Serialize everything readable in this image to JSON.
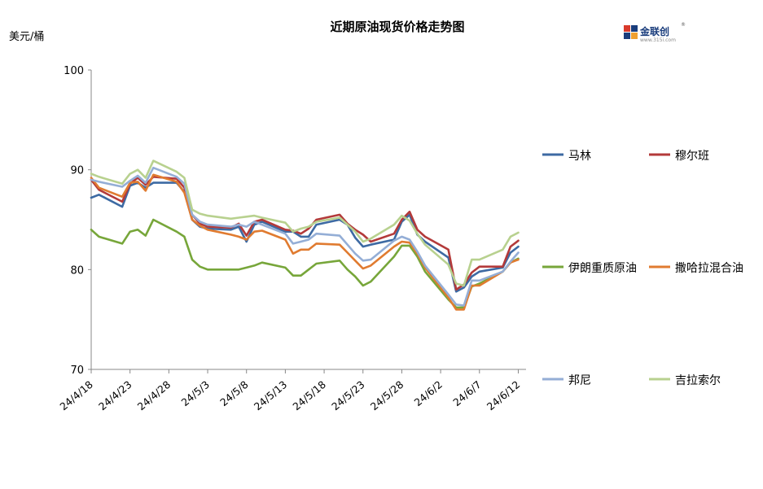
{
  "chart_data": {
    "type": "line",
    "title": "近期原油现货价格走势图",
    "unit_label": "美元/桶",
    "ylim": [
      70,
      100
    ],
    "y_ticks": [
      "70",
      "80",
      "90",
      "100"
    ],
    "x_ticks": [
      "24/4/18",
      "24/4/23",
      "24/4/28",
      "24/5/3",
      "24/5/8",
      "24/5/13",
      "24/5/18",
      "24/5/23",
      "24/5/28",
      "24/6/2",
      "24/6/7",
      "24/6/12"
    ],
    "x_start": "2024-04-18",
    "x_end": "2024-06-13",
    "grid": false,
    "legend_position": "right",
    "series": [
      {
        "name": "马林",
        "color": "#3d6aa3",
        "points": [
          [
            "2024-04-18",
            87.2
          ],
          [
            "2024-04-19",
            87.5
          ],
          [
            "2024-04-22",
            86.3
          ],
          [
            "2024-04-23",
            88.4
          ],
          [
            "2024-04-24",
            88.7
          ],
          [
            "2024-04-25",
            88.2
          ],
          [
            "2024-04-26",
            88.7
          ],
          [
            "2024-04-29",
            88.7
          ],
          [
            "2024-04-30",
            87.8
          ],
          [
            "2024-05-01",
            85.0
          ],
          [
            "2024-05-02",
            84.3
          ],
          [
            "2024-05-03",
            84.1
          ],
          [
            "2024-05-06",
            84.0
          ],
          [
            "2024-05-07",
            84.3
          ],
          [
            "2024-05-08",
            82.8
          ],
          [
            "2024-05-09",
            84.5
          ],
          [
            "2024-05-10",
            84.8
          ],
          [
            "2024-05-13",
            83.8
          ],
          [
            "2024-05-14",
            83.8
          ],
          [
            "2024-05-15",
            83.3
          ],
          [
            "2024-05-16",
            83.3
          ],
          [
            "2024-05-17",
            84.5
          ],
          [
            "2024-05-20",
            85.0
          ],
          [
            "2024-05-21",
            84.5
          ],
          [
            "2024-05-22",
            83.2
          ],
          [
            "2024-05-23",
            82.3
          ],
          [
            "2024-05-24",
            82.5
          ],
          [
            "2024-05-27",
            83.0
          ],
          [
            "2024-05-28",
            84.8
          ],
          [
            "2024-05-29",
            85.5
          ],
          [
            "2024-05-30",
            83.5
          ],
          [
            "2024-05-31",
            82.8
          ],
          [
            "2024-06-03",
            81.2
          ],
          [
            "2024-06-04",
            77.8
          ],
          [
            "2024-06-05",
            78.2
          ],
          [
            "2024-06-06",
            79.3
          ],
          [
            "2024-06-07",
            79.8
          ],
          [
            "2024-06-10",
            80.2
          ],
          [
            "2024-06-11",
            81.7
          ],
          [
            "2024-06-12",
            82.3
          ]
        ]
      },
      {
        "name": "穆尔班",
        "color": "#b33a3a",
        "points": [
          [
            "2024-04-18",
            89.0
          ],
          [
            "2024-04-19",
            88.0
          ],
          [
            "2024-04-22",
            86.8
          ],
          [
            "2024-04-23",
            88.6
          ],
          [
            "2024-04-24",
            89.2
          ],
          [
            "2024-04-25",
            88.5
          ],
          [
            "2024-04-26",
            89.3
          ],
          [
            "2024-04-29",
            89.1
          ],
          [
            "2024-04-30",
            88.2
          ],
          [
            "2024-05-01",
            85.5
          ],
          [
            "2024-05-02",
            84.6
          ],
          [
            "2024-05-03",
            84.3
          ],
          [
            "2024-05-06",
            84.2
          ],
          [
            "2024-05-07",
            84.6
          ],
          [
            "2024-05-08",
            83.4
          ],
          [
            "2024-05-09",
            84.8
          ],
          [
            "2024-05-10",
            85.0
          ],
          [
            "2024-05-13",
            84.0
          ],
          [
            "2024-05-14",
            83.9
          ],
          [
            "2024-05-15",
            83.6
          ],
          [
            "2024-05-16",
            84.1
          ],
          [
            "2024-05-17",
            85.0
          ],
          [
            "2024-05-20",
            85.5
          ],
          [
            "2024-05-21",
            84.6
          ],
          [
            "2024-05-22",
            84.0
          ],
          [
            "2024-05-23",
            83.5
          ],
          [
            "2024-05-24",
            82.8
          ],
          [
            "2024-05-27",
            83.6
          ],
          [
            "2024-05-28",
            85.0
          ],
          [
            "2024-05-29",
            85.8
          ],
          [
            "2024-05-30",
            84.0
          ],
          [
            "2024-05-31",
            83.3
          ],
          [
            "2024-06-03",
            82.0
          ],
          [
            "2024-06-04",
            78.0
          ],
          [
            "2024-06-05",
            78.5
          ],
          [
            "2024-06-06",
            79.7
          ],
          [
            "2024-06-07",
            80.3
          ],
          [
            "2024-06-10",
            80.3
          ],
          [
            "2024-06-11",
            82.3
          ],
          [
            "2024-06-12",
            82.9
          ]
        ]
      },
      {
        "name": "伊朗重质原油",
        "color": "#77a63a",
        "points": [
          [
            "2024-04-18",
            84.0
          ],
          [
            "2024-04-19",
            83.3
          ],
          [
            "2024-04-22",
            82.6
          ],
          [
            "2024-04-23",
            83.8
          ],
          [
            "2024-04-24",
            84.0
          ],
          [
            "2024-04-25",
            83.4
          ],
          [
            "2024-04-26",
            85.0
          ],
          [
            "2024-04-29",
            83.8
          ],
          [
            "2024-04-30",
            83.3
          ],
          [
            "2024-05-01",
            81.0
          ],
          [
            "2024-05-02",
            80.3
          ],
          [
            "2024-05-03",
            80.0
          ],
          [
            "2024-05-06",
            80.0
          ],
          [
            "2024-05-07",
            80.0
          ],
          [
            "2024-05-08",
            80.2
          ],
          [
            "2024-05-09",
            80.4
          ],
          [
            "2024-05-10",
            80.7
          ],
          [
            "2024-05-13",
            80.2
          ],
          [
            "2024-05-14",
            79.4
          ],
          [
            "2024-05-15",
            79.4
          ],
          [
            "2024-05-16",
            80.0
          ],
          [
            "2024-05-17",
            80.6
          ],
          [
            "2024-05-20",
            80.9
          ],
          [
            "2024-05-21",
            80.0
          ],
          [
            "2024-05-22",
            79.3
          ],
          [
            "2024-05-23",
            78.4
          ],
          [
            "2024-05-24",
            78.8
          ],
          [
            "2024-05-27",
            81.3
          ],
          [
            "2024-05-28",
            82.4
          ],
          [
            "2024-05-29",
            82.4
          ],
          [
            "2024-05-30",
            81.3
          ],
          [
            "2024-05-31",
            79.8
          ],
          [
            "2024-06-03",
            77.0
          ],
          [
            "2024-06-04",
            76.2
          ],
          [
            "2024-06-05",
            76.2
          ],
          [
            "2024-06-06",
            78.3
          ],
          [
            "2024-06-07",
            78.6
          ],
          [
            "2024-06-10",
            79.8
          ],
          [
            "2024-06-11",
            80.7
          ],
          [
            "2024-06-12",
            81.1
          ]
        ]
      },
      {
        "name": "撒哈拉混合油",
        "color": "#e07b30",
        "points": [
          [
            "2024-04-18",
            89.2
          ],
          [
            "2024-04-19",
            88.2
          ],
          [
            "2024-04-22",
            87.3
          ],
          [
            "2024-04-23",
            88.7
          ],
          [
            "2024-04-24",
            88.8
          ],
          [
            "2024-04-25",
            87.9
          ],
          [
            "2024-04-26",
            89.5
          ],
          [
            "2024-04-29",
            88.8
          ],
          [
            "2024-04-30",
            87.7
          ],
          [
            "2024-05-01",
            85.0
          ],
          [
            "2024-05-02",
            84.4
          ],
          [
            "2024-05-03",
            84.0
          ],
          [
            "2024-05-06",
            83.5
          ],
          [
            "2024-05-07",
            83.3
          ],
          [
            "2024-05-08",
            83.0
          ],
          [
            "2024-05-09",
            83.8
          ],
          [
            "2024-05-10",
            83.9
          ],
          [
            "2024-05-13",
            83.0
          ],
          [
            "2024-05-14",
            81.6
          ],
          [
            "2024-05-15",
            82.0
          ],
          [
            "2024-05-16",
            82.0
          ],
          [
            "2024-05-17",
            82.6
          ],
          [
            "2024-05-20",
            82.5
          ],
          [
            "2024-05-21",
            81.7
          ],
          [
            "2024-05-22",
            80.9
          ],
          [
            "2024-05-23",
            80.1
          ],
          [
            "2024-05-24",
            80.4
          ],
          [
            "2024-05-27",
            82.3
          ],
          [
            "2024-05-28",
            82.8
          ],
          [
            "2024-05-29",
            82.7
          ],
          [
            "2024-05-30",
            81.6
          ],
          [
            "2024-05-31",
            80.2
          ],
          [
            "2024-06-03",
            77.2
          ],
          [
            "2024-06-04",
            76.0
          ],
          [
            "2024-06-05",
            76.0
          ],
          [
            "2024-06-06",
            78.4
          ],
          [
            "2024-06-07",
            78.4
          ],
          [
            "2024-06-10",
            79.8
          ],
          [
            "2024-06-11",
            80.7
          ],
          [
            "2024-06-12",
            81.0
          ]
        ]
      },
      {
        "name": "邦尼",
        "color": "#94aed6",
        "points": [
          [
            "2024-04-18",
            89.0
          ],
          [
            "2024-04-19",
            88.8
          ],
          [
            "2024-04-22",
            88.3
          ],
          [
            "2024-04-23",
            88.9
          ],
          [
            "2024-04-24",
            89.4
          ],
          [
            "2024-04-25",
            88.7
          ],
          [
            "2024-04-26",
            90.2
          ],
          [
            "2024-04-29",
            89.3
          ],
          [
            "2024-04-30",
            88.6
          ],
          [
            "2024-05-01",
            85.5
          ],
          [
            "2024-05-02",
            84.8
          ],
          [
            "2024-05-03",
            84.5
          ],
          [
            "2024-05-06",
            84.3
          ],
          [
            "2024-05-07",
            84.5
          ],
          [
            "2024-05-08",
            84.3
          ],
          [
            "2024-05-09",
            84.8
          ],
          [
            "2024-05-10",
            84.5
          ],
          [
            "2024-05-13",
            83.6
          ],
          [
            "2024-05-14",
            82.6
          ],
          [
            "2024-05-15",
            82.8
          ],
          [
            "2024-05-16",
            83.0
          ],
          [
            "2024-05-17",
            83.6
          ],
          [
            "2024-05-20",
            83.4
          ],
          [
            "2024-05-21",
            82.5
          ],
          [
            "2024-05-22",
            81.6
          ],
          [
            "2024-05-23",
            80.9
          ],
          [
            "2024-05-24",
            81.0
          ],
          [
            "2024-05-27",
            82.9
          ],
          [
            "2024-05-28",
            83.3
          ],
          [
            "2024-05-29",
            83.0
          ],
          [
            "2024-05-30",
            81.8
          ],
          [
            "2024-05-31",
            80.4
          ],
          [
            "2024-06-03",
            77.5
          ],
          [
            "2024-06-04",
            76.5
          ],
          [
            "2024-06-05",
            76.4
          ],
          [
            "2024-06-06",
            78.9
          ],
          [
            "2024-06-07",
            78.9
          ],
          [
            "2024-06-10",
            79.8
          ],
          [
            "2024-06-11",
            80.8
          ],
          [
            "2024-06-12",
            81.7
          ]
        ]
      },
      {
        "name": "吉拉索尔",
        "color": "#b8d18f",
        "points": [
          [
            "2024-04-18",
            89.6
          ],
          [
            "2024-04-19",
            89.3
          ],
          [
            "2024-04-22",
            88.6
          ],
          [
            "2024-04-23",
            89.6
          ],
          [
            "2024-04-24",
            90.0
          ],
          [
            "2024-04-25",
            89.2
          ],
          [
            "2024-04-26",
            90.9
          ],
          [
            "2024-04-29",
            89.8
          ],
          [
            "2024-04-30",
            89.2
          ],
          [
            "2024-05-01",
            86.0
          ],
          [
            "2024-05-02",
            85.6
          ],
          [
            "2024-05-03",
            85.4
          ],
          [
            "2024-05-06",
            85.1
          ],
          [
            "2024-05-07",
            85.2
          ],
          [
            "2024-05-08",
            85.3
          ],
          [
            "2024-05-09",
            85.4
          ],
          [
            "2024-05-10",
            85.2
          ],
          [
            "2024-05-13",
            84.7
          ],
          [
            "2024-05-14",
            83.8
          ],
          [
            "2024-05-15",
            84.1
          ],
          [
            "2024-05-16",
            84.3
          ],
          [
            "2024-05-17",
            84.8
          ],
          [
            "2024-05-20",
            85.2
          ],
          [
            "2024-05-21",
            84.5
          ],
          [
            "2024-05-22",
            83.8
          ],
          [
            "2024-05-23",
            82.8
          ],
          [
            "2024-05-24",
            83.1
          ],
          [
            "2024-05-27",
            84.5
          ],
          [
            "2024-05-28",
            85.4
          ],
          [
            "2024-05-29",
            84.9
          ],
          [
            "2024-05-30",
            83.6
          ],
          [
            "2024-05-31",
            82.5
          ],
          [
            "2024-06-03",
            80.5
          ],
          [
            "2024-06-04",
            78.6
          ],
          [
            "2024-06-05",
            78.4
          ],
          [
            "2024-06-06",
            81.0
          ],
          [
            "2024-06-07",
            81.0
          ],
          [
            "2024-06-10",
            82.0
          ],
          [
            "2024-06-11",
            83.3
          ],
          [
            "2024-06-12",
            83.7
          ]
        ]
      }
    ]
  },
  "logo": {
    "text": "金联创",
    "subtext": "www.315i.com",
    "registered_mark": "®"
  }
}
